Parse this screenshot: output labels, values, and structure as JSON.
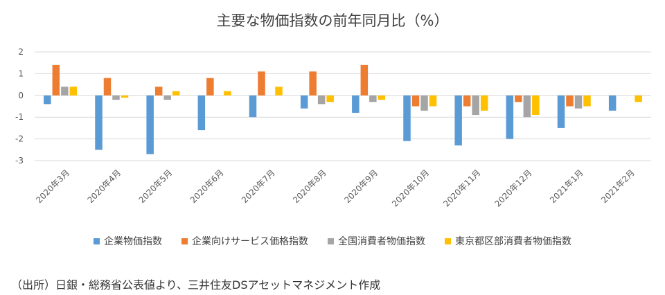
{
  "chart_data": {
    "type": "bar",
    "title": "主要な物価指数の前年同月比（%）",
    "categories": [
      "2020年3月",
      "2020年4月",
      "2020年5月",
      "2020年6月",
      "2020年7月",
      "2020年8月",
      "2020年9月",
      "2020年10月",
      "2020年11月",
      "2020年12月",
      "2021年1月",
      "2021年2月"
    ],
    "series": [
      {
        "name": "企業物価指数",
        "color": "#5b9bd5",
        "values": [
          -0.4,
          -2.5,
          -2.7,
          -1.6,
          -1.0,
          -0.6,
          -0.8,
          -2.1,
          -2.3,
          -2.0,
          -1.5,
          -0.7
        ]
      },
      {
        "name": "企業向けサービス価格指数",
        "color": "#ed7d31",
        "values": [
          1.4,
          0.8,
          0.4,
          0.8,
          1.1,
          1.1,
          1.4,
          -0.5,
          -0.5,
          -0.3,
          -0.5,
          null
        ]
      },
      {
        "name": "全国消費者物価指数",
        "color": "#a5a5a5",
        "values": [
          0.4,
          -0.2,
          -0.2,
          0.0,
          0.0,
          -0.4,
          -0.3,
          -0.7,
          -0.9,
          -1.0,
          -0.6,
          null
        ]
      },
      {
        "name": "東京都区部消費者物価指数",
        "color": "#ffc000",
        "values": [
          0.4,
          -0.1,
          0.2,
          0.2,
          0.4,
          -0.3,
          -0.2,
          -0.5,
          -0.7,
          -0.9,
          -0.5,
          -0.3
        ]
      }
    ],
    "yticks": [
      2,
      1,
      0,
      -1,
      -2,
      -3
    ],
    "ylim": [
      -3,
      2
    ],
    "grid": true,
    "legend_position": "bottom"
  },
  "source_note": "（出所）日銀・総務省公表値より、三井住友DSアセットマネジメント作成"
}
